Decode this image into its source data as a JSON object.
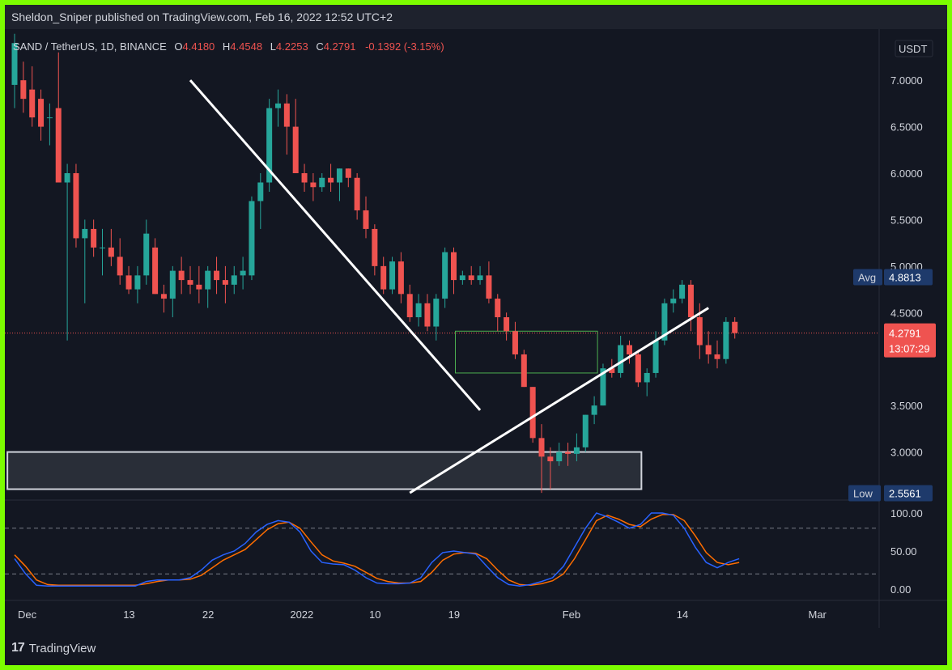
{
  "header": {
    "published": "Sheldon_Sniper published on TradingView.com, Feb 16, 2022 12:52 UTC+2"
  },
  "symbol": {
    "name": "SAND / TetherUS, 1D, BINANCE",
    "open_label": "O",
    "open": "4.4180",
    "high_label": "H",
    "high": "4.4548",
    "low_label": "L",
    "low": "4.2253",
    "close_label": "C",
    "close": "4.2791",
    "change": "-0.1392 (-3.15%)"
  },
  "footer": {
    "logo": "17",
    "brand": "TradingView"
  },
  "chart_data": {
    "type": "candlestick",
    "currency": "USDT",
    "price_axis": {
      "range": [
        2.5,
        7.55
      ],
      "ticks": [
        "7.0000",
        "6.5000",
        "6.0000",
        "5.5000",
        "5.0000",
        "4.5000",
        "3.5000",
        "3.0000"
      ]
    },
    "last_price": {
      "value": 4.2791,
      "label": "4.2791",
      "countdown": "13:07:29",
      "color": "#ef5350"
    },
    "avg": {
      "label": "Avg",
      "value": 4.8813,
      "text": "4.8813"
    },
    "low": {
      "label": "Low",
      "value": 2.5561,
      "text": "2.5561"
    },
    "x_axis": {
      "labels": [
        {
          "text": "Dec",
          "day": 0
        },
        {
          "text": "13",
          "day": 12
        },
        {
          "text": "22",
          "day": 21
        },
        {
          "text": "2022",
          "day": 31
        },
        {
          "text": "10",
          "day": 40
        },
        {
          "text": "19",
          "day": 49
        },
        {
          "text": "Feb",
          "day": 62
        },
        {
          "text": "14",
          "day": 75
        },
        {
          "text": "Mar",
          "day": 90
        }
      ]
    },
    "candles": [
      [
        6.95,
        7.5,
        6.7,
        7.4
      ],
      [
        7.0,
        7.2,
        6.65,
        6.8
      ],
      [
        6.9,
        7.15,
        6.5,
        6.6
      ],
      [
        6.8,
        6.9,
        6.35,
        6.5
      ],
      [
        6.6,
        6.75,
        6.3,
        6.6
      ],
      [
        6.7,
        7.3,
        5.9,
        5.9
      ],
      [
        5.9,
        6.1,
        4.2,
        6.0
      ],
      [
        6.0,
        6.1,
        5.2,
        5.3
      ],
      [
        5.3,
        5.5,
        4.6,
        5.4
      ],
      [
        5.4,
        5.5,
        5.1,
        5.2
      ],
      [
        5.2,
        5.4,
        4.9,
        5.2
      ],
      [
        5.2,
        5.4,
        5.0,
        5.1
      ],
      [
        5.1,
        5.3,
        4.8,
        4.9
      ],
      [
        4.9,
        5.0,
        4.7,
        4.75
      ],
      [
        4.75,
        5.0,
        4.6,
        4.9
      ],
      [
        4.9,
        5.5,
        4.8,
        5.35
      ],
      [
        5.2,
        5.3,
        4.7,
        4.7
      ],
      [
        4.7,
        4.8,
        4.5,
        4.65
      ],
      [
        4.65,
        5.0,
        4.45,
        4.95
      ],
      [
        4.95,
        5.1,
        4.7,
        4.85
      ],
      [
        4.85,
        5.0,
        4.7,
        4.8
      ],
      [
        4.8,
        5.0,
        4.6,
        4.75
      ],
      [
        4.75,
        5.0,
        4.55,
        4.95
      ],
      [
        4.95,
        5.1,
        4.7,
        4.85
      ],
      [
        4.85,
        5.0,
        4.6,
        4.8
      ],
      [
        4.8,
        5.0,
        4.7,
        4.9
      ],
      [
        4.9,
        5.1,
        4.75,
        4.95
      ],
      [
        4.9,
        5.75,
        4.85,
        5.7
      ],
      [
        5.7,
        6.0,
        5.4,
        5.9
      ],
      [
        5.9,
        6.8,
        5.8,
        6.7
      ],
      [
        6.7,
        6.9,
        6.5,
        6.75
      ],
      [
        6.75,
        6.85,
        6.2,
        6.5
      ],
      [
        6.5,
        6.8,
        6.0,
        6.0
      ],
      [
        6.0,
        6.1,
        5.8,
        5.9
      ],
      [
        5.9,
        6.0,
        5.7,
        5.85
      ],
      [
        5.85,
        6.0,
        5.8,
        5.95
      ],
      [
        5.95,
        6.1,
        5.8,
        5.9
      ],
      [
        5.9,
        6.05,
        5.7,
        6.05
      ],
      [
        6.05,
        6.05,
        5.85,
        5.95
      ],
      [
        5.95,
        6.0,
        5.5,
        5.6
      ],
      [
        5.6,
        5.75,
        5.3,
        5.4
      ],
      [
        5.4,
        5.45,
        4.9,
        5.0
      ],
      [
        5.0,
        5.1,
        4.7,
        4.75
      ],
      [
        4.75,
        5.1,
        4.7,
        5.05
      ],
      [
        5.05,
        5.15,
        4.6,
        4.7
      ],
      [
        4.7,
        4.8,
        4.4,
        4.45
      ],
      [
        4.45,
        4.7,
        4.35,
        4.6
      ],
      [
        4.6,
        4.7,
        4.3,
        4.35
      ],
      [
        4.35,
        4.7,
        4.2,
        4.65
      ],
      [
        4.65,
        5.2,
        4.55,
        5.15
      ],
      [
        5.15,
        5.2,
        4.7,
        4.85
      ],
      [
        4.85,
        4.95,
        4.8,
        4.9
      ],
      [
        4.9,
        5.0,
        4.8,
        4.85
      ],
      [
        4.85,
        5.0,
        4.8,
        4.9
      ],
      [
        4.9,
        5.05,
        4.6,
        4.65
      ],
      [
        4.65,
        4.7,
        4.3,
        4.45
      ],
      [
        4.45,
        4.5,
        4.2,
        4.3
      ],
      [
        4.3,
        4.4,
        4.0,
        4.05
      ],
      [
        4.05,
        4.1,
        3.7,
        3.7
      ],
      [
        3.7,
        3.7,
        3.1,
        3.15
      ],
      [
        3.15,
        3.3,
        2.56,
        2.95
      ],
      [
        2.95,
        3.05,
        2.6,
        2.9
      ],
      [
        2.9,
        3.1,
        2.85,
        3.0
      ],
      [
        3.0,
        3.1,
        2.85,
        2.98
      ],
      [
        2.98,
        3.2,
        2.9,
        3.05
      ],
      [
        3.05,
        3.4,
        3.0,
        3.4
      ],
      [
        3.4,
        3.6,
        3.3,
        3.5
      ],
      [
        3.5,
        3.95,
        3.5,
        3.9
      ],
      [
        3.9,
        4.0,
        3.8,
        3.85
      ],
      [
        3.85,
        4.25,
        3.8,
        4.15
      ],
      [
        4.15,
        4.2,
        3.95,
        4.05
      ],
      [
        4.05,
        4.1,
        3.7,
        3.75
      ],
      [
        3.75,
        3.9,
        3.6,
        3.85
      ],
      [
        3.85,
        4.3,
        3.8,
        4.2
      ],
      [
        4.2,
        4.65,
        4.15,
        4.6
      ],
      [
        4.6,
        4.75,
        4.5,
        4.65
      ],
      [
        4.65,
        4.85,
        4.6,
        4.8
      ],
      [
        4.8,
        4.85,
        4.3,
        4.45
      ],
      [
        4.45,
        4.6,
        4.0,
        4.15
      ],
      [
        4.15,
        4.3,
        3.95,
        4.05
      ],
      [
        4.05,
        4.2,
        3.9,
        4.0
      ],
      [
        4.0,
        4.45,
        3.95,
        4.4
      ],
      [
        4.4,
        4.45,
        4.22,
        4.28
      ]
    ],
    "lines": [
      {
        "name": "downtrend",
        "from": [
          20,
          7.0
        ],
        "to": [
          53,
          3.45
        ],
        "color": "#ffffff"
      },
      {
        "name": "uptrend",
        "from": [
          45,
          2.56
        ],
        "to": [
          79,
          4.55
        ],
        "color": "#ffffff"
      }
    ],
    "zones": [
      {
        "name": "support-zone",
        "x1": -1,
        "x2": 71,
        "y1": 2.6,
        "y2": 3.0,
        "color": "#d1d4dc"
      },
      {
        "name": "consolidation-box",
        "x1": 50,
        "x2": 66,
        "y1": 3.85,
        "y2": 4.3,
        "color": "#4caf50"
      }
    ],
    "oscillator": {
      "range": [
        0,
        100
      ],
      "ticks": [
        "100.00",
        "50.00",
        "0.00"
      ],
      "levels": [
        80,
        20
      ],
      "k_color": "#2962ff",
      "d_color": "#ff6d00",
      "k": [
        40,
        20,
        5,
        4,
        4,
        4,
        4,
        4,
        4,
        4,
        4,
        4,
        10,
        12,
        12,
        12,
        15,
        25,
        38,
        45,
        50,
        60,
        75,
        85,
        90,
        88,
        75,
        50,
        35,
        33,
        32,
        25,
        15,
        8,
        7,
        7,
        8,
        15,
        35,
        48,
        50,
        48,
        46,
        30,
        15,
        6,
        4,
        6,
        10,
        15,
        30,
        55,
        80,
        100,
        95,
        88,
        80,
        85,
        100,
        100,
        97,
        80,
        55,
        35,
        28,
        35,
        40
      ],
      "d": [
        45,
        30,
        12,
        6,
        5,
        5,
        5,
        5,
        5,
        5,
        5,
        5,
        7,
        10,
        12,
        12,
        13,
        18,
        28,
        38,
        45,
        52,
        65,
        78,
        86,
        88,
        80,
        62,
        45,
        37,
        34,
        30,
        22,
        14,
        10,
        8,
        8,
        10,
        22,
        38,
        46,
        48,
        47,
        40,
        25,
        12,
        6,
        5,
        7,
        11,
        20,
        40,
        65,
        90,
        97,
        92,
        85,
        82,
        92,
        98,
        98,
        90,
        70,
        48,
        35,
        32,
        35
      ]
    }
  }
}
